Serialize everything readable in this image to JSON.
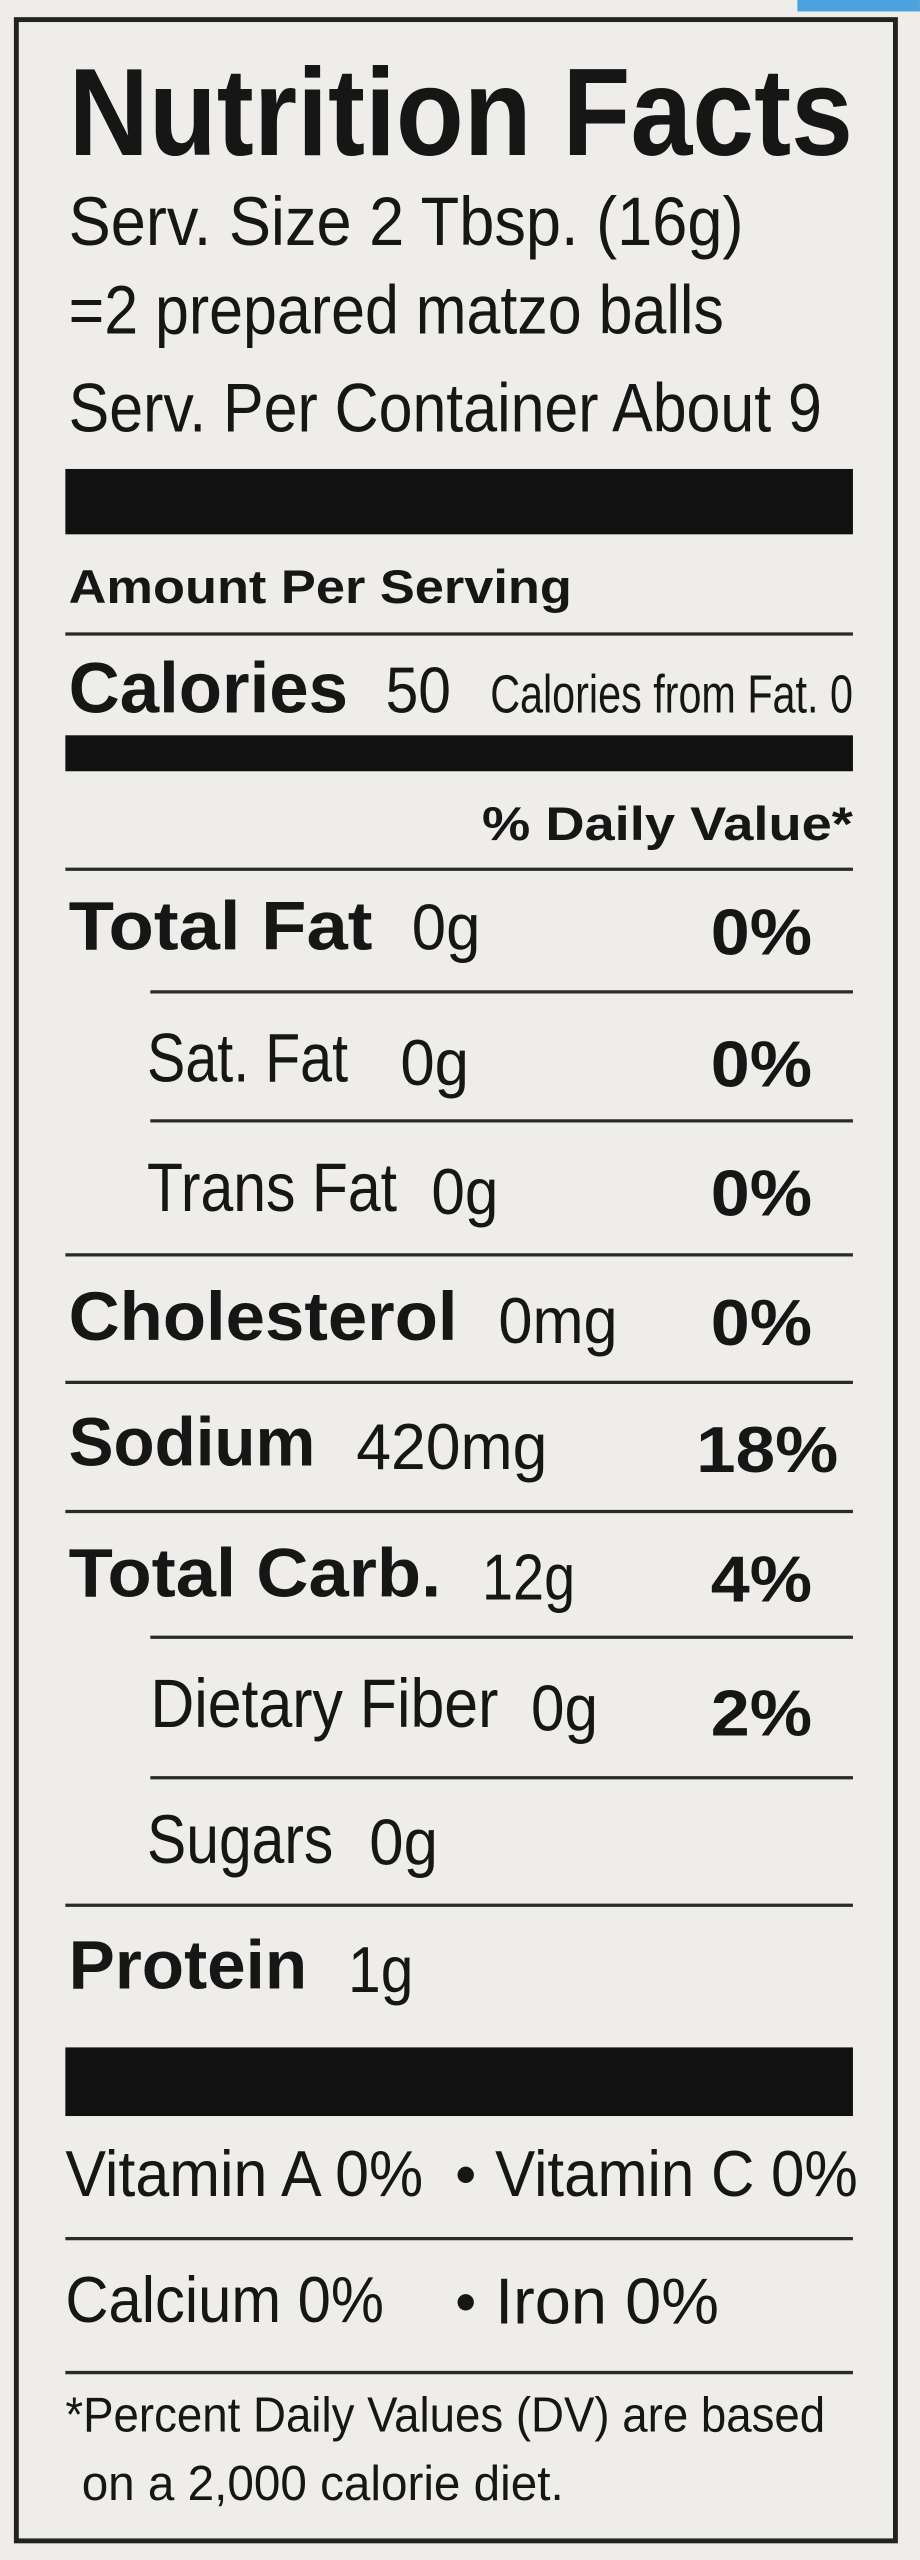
{
  "header": {
    "title": "Nutrition Facts",
    "serving_size": "Serv. Size 2 Tbsp. (16g)",
    "serving_equivalent": "=2 prepared matzo balls",
    "servings_per_container": "Serv. Per Container About 9"
  },
  "amount_per_serving": "Amount Per Serving",
  "calories": {
    "label": "Calories",
    "value": "50",
    "from_fat": "Calories from Fat. 0"
  },
  "daily_value_header": "% Daily Value*",
  "nutrients": [
    {
      "name": "Total Fat",
      "amount": "0g",
      "dv": "0%"
    },
    {
      "name": "Sat. Fat",
      "amount": "0g",
      "dv": "0%"
    },
    {
      "name": "Trans Fat",
      "amount": "0g",
      "dv": "0%"
    },
    {
      "name": "Cholesterol",
      "amount": "0mg",
      "dv": "0%"
    },
    {
      "name": "Sodium",
      "amount": "420mg",
      "dv": "18%"
    },
    {
      "name": "Total Carb.",
      "amount": "12g",
      "dv": "4%"
    },
    {
      "name": "Dietary Fiber",
      "amount": "0g",
      "dv": "2%"
    },
    {
      "name": "Sugars",
      "amount": "0g"
    },
    {
      "name": "Protein",
      "amount": "1g"
    }
  ],
  "vitamins": [
    [
      "Vitamin A 0%",
      "Vitamin C 0%"
    ],
    [
      "Calcium 0%",
      "Iron 0%"
    ]
  ],
  "footnote": [
    "*Percent Daily Values (DV) are based",
    "on a 2,000 calorie diet."
  ]
}
